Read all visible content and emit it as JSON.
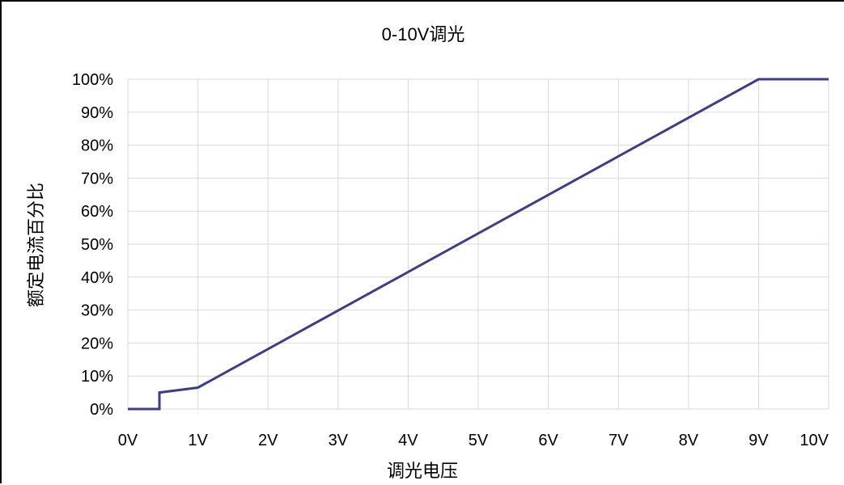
{
  "chart_data": {
    "type": "line",
    "title": "0-10V调光",
    "xlabel": "调光电压",
    "ylabel": "额定电流百分比",
    "x_ticks": [
      "0V",
      "1V",
      "2V",
      "3V",
      "4V",
      "5V",
      "6V",
      "7V",
      "8V",
      "9V",
      "10V"
    ],
    "y_ticks": [
      "0%",
      "10%",
      "20%",
      "30%",
      "40%",
      "50%",
      "60%",
      "70%",
      "80%",
      "90%",
      "100%"
    ],
    "xlim": [
      0,
      10
    ],
    "ylim": [
      0,
      100
    ],
    "grid": true,
    "legend": "none",
    "series": [
      {
        "color": "#3b3b8f",
        "points": [
          {
            "x": 0,
            "y": 0
          },
          {
            "x": 0.45,
            "y": 0
          },
          {
            "x": 0.45,
            "y": 5
          },
          {
            "x": 1,
            "y": 6.5
          },
          {
            "x": 9,
            "y": 100
          },
          {
            "x": 10,
            "y": 100
          }
        ]
      }
    ]
  }
}
